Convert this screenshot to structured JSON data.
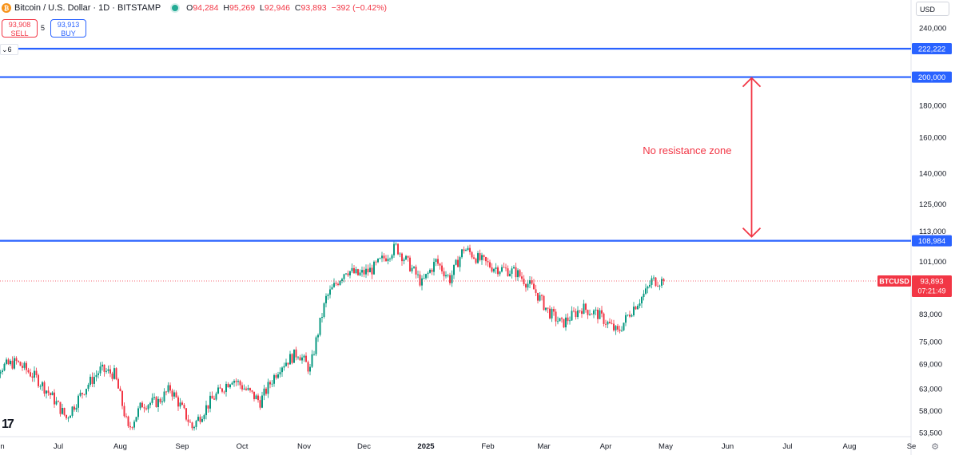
{
  "header": {
    "coin_icon": "bitcoin-icon",
    "symbol_title": "Bitcoin / U.S. Dollar · 1D · BITSTAMP",
    "status_color": "#22ab94",
    "ohlc": {
      "o_label": "O",
      "o_value": "94,284",
      "h_label": "H",
      "h_value": "95,269",
      "l_label": "L",
      "l_value": "92,946",
      "c_label": "C",
      "c_value": "93,893",
      "change": "−392 (−0.42%)"
    }
  },
  "trade": {
    "sell_price": "93,908",
    "sell_label": "SELL",
    "spread": "5",
    "buy_price": "93,913",
    "buy_label": "BUY"
  },
  "indicators_toggle": "6",
  "currency_button": "USD",
  "watermark": "17",
  "chart_data": {
    "type": "candlestick",
    "title": "Bitcoin / U.S. Dollar · 1D · BITSTAMP",
    "symbol": "BTCUSD",
    "scale": "log",
    "y_ticks": [
      240000,
      200000,
      180000,
      160000,
      140000,
      125000,
      113000,
      101000,
      83000,
      75000,
      69000,
      63000,
      58000,
      53500
    ],
    "y_tick_labels": [
      "240,000",
      "200,000",
      "180,000",
      "160,000",
      "140,000",
      "125,000",
      "113,000",
      "101,000",
      "83,000",
      "75,000",
      "69,000",
      "63,000",
      "58,000",
      "53,500"
    ],
    "x_ticks": [
      "Jun",
      "Jul",
      "Aug",
      "Sep",
      "Oct",
      "Nov",
      "Dec",
      "2025",
      "Feb",
      "Mar",
      "Apr",
      "May",
      "Jun",
      "Jul",
      "Aug",
      "Se"
    ],
    "x_tick_dates": [
      "2024-06-01",
      "2024-07-01",
      "2024-08-01",
      "2024-09-01",
      "2024-10-01",
      "2024-11-01",
      "2024-12-01",
      "2025-01-01",
      "2025-02-01",
      "2025-03-01",
      "2025-04-01",
      "2025-05-01",
      "2025-06-01",
      "2025-07-01",
      "2025-08-01",
      "2025-09-01"
    ],
    "bold_x_tick": "2025",
    "horizontal_lines": [
      {
        "price": 222222,
        "label": "222,222",
        "color": "#2962ff"
      },
      {
        "price": 200000,
        "label": "200,000",
        "color": "#2962ff"
      },
      {
        "price": 108984,
        "label": "108,984",
        "color": "#2962ff"
      }
    ],
    "last_price": {
      "price": 93893,
      "label": "93,893",
      "tag": "BTCUSD",
      "countdown": "07:21:49",
      "color": "#f23645"
    },
    "annotation": {
      "text": "No resistance zone",
      "color": "#f23645",
      "arrow_from": 108984,
      "arrow_to": 200000,
      "arrow_date": "2025-06-13"
    },
    "up_color": "#089981",
    "down_color": "#f23645",
    "series": {
      "name": "BTCUSD",
      "points": [
        [
          "2024-06-01",
          68000
        ],
        [
          "2024-06-10",
          69500
        ],
        [
          "2024-06-20",
          65500
        ],
        [
          "2024-06-28",
          61000
        ],
        [
          "2024-07-05",
          56500
        ],
        [
          "2024-07-15",
          63500
        ],
        [
          "2024-07-22",
          67500
        ],
        [
          "2024-07-29",
          66500
        ],
        [
          "2024-08-05",
          54000
        ],
        [
          "2024-08-12",
          59500
        ],
        [
          "2024-08-20",
          60000
        ],
        [
          "2024-08-26",
          63000
        ],
        [
          "2024-09-06",
          54500
        ],
        [
          "2024-09-15",
          60000
        ],
        [
          "2024-09-26",
          65500
        ],
        [
          "2024-10-01",
          63500
        ],
        [
          "2024-10-10",
          60000
        ],
        [
          "2024-10-20",
          68500
        ],
        [
          "2024-10-29",
          72000
        ],
        [
          "2024-11-04",
          67500
        ],
        [
          "2024-11-12",
          88000
        ],
        [
          "2024-11-22",
          98000
        ],
        [
          "2024-11-28",
          96000
        ],
        [
          "2024-12-05",
          98000
        ],
        [
          "2024-12-17",
          106500
        ],
        [
          "2024-12-30",
          93000
        ],
        [
          "2025-01-06",
          101000
        ],
        [
          "2025-01-13",
          94500
        ],
        [
          "2025-01-20",
          106000
        ],
        [
          "2025-01-27",
          102000
        ],
        [
          "2025-02-03",
          99000
        ],
        [
          "2025-02-15",
          97000
        ],
        [
          "2025-02-24",
          91000
        ],
        [
          "2025-03-03",
          84000
        ],
        [
          "2025-03-10",
          80000
        ],
        [
          "2025-03-20",
          85000
        ],
        [
          "2025-03-28",
          83000
        ],
        [
          "2025-04-07",
          77500
        ],
        [
          "2025-04-14",
          84500
        ],
        [
          "2025-04-21",
          90000
        ],
        [
          "2025-04-24",
          94000
        ],
        [
          "2025-04-30",
          93893
        ]
      ]
    }
  }
}
